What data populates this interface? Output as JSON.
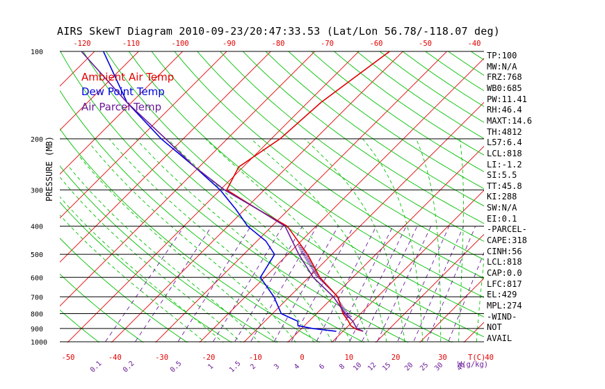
{
  "title": "AIRS SkewT Diagram 2010-09-23/20:47:33.53 (Lat/Lon 56.78/-118.07 deg)",
  "legend": [
    {
      "label": "Ambient Air Temp",
      "color": "#e00000"
    },
    {
      "label": "Dew Point Temp",
      "color": "#0000e0"
    },
    {
      "label": "Air Parcel Temp",
      "color": "#6a1b9a"
    }
  ],
  "colors": {
    "temp": "#e00000",
    "dew": "#0000e0",
    "parcel": "#6a1b9a",
    "isotherm": "#e00000",
    "dry_adiabat": "#00c000",
    "moist_adiabat": "#00c000",
    "mixing_ratio": "#6a1b9a",
    "axis": "#000000"
  },
  "indices": [
    "TP:100",
    "MW:N/A",
    "FRZ:768",
    "WB0:685",
    "PW:11.41",
    "RH:46.4",
    "MAXT:14.6",
    "TH:4812",
    "L57:6.4",
    "LCL:818",
    "LI:-1.2",
    "SI:5.5",
    "TT:45.8",
    "KI:288",
    "SW:N/A",
    "EI:0.1",
    "-PARCEL-",
    "CAPE:318",
    "CINH:56",
    "LCL:818",
    "CAP:0.0",
    "LFC:817",
    "EL:429",
    "MPL:274",
    "-WIND-",
    "NOT",
    "AVAIL"
  ],
  "chart_data": {
    "type": "line",
    "title": "AIRS SkewT Diagram 2010-09-23/20:47:33.53 (Lat/Lon 56.78/-118.07 deg)",
    "ylabel": "PRESSURE (MB)",
    "xlabel": "T(C)",
    "mixing_ratio_label": "W(g/kg)",
    "y_scale": "log",
    "ylim": [
      1000,
      100
    ],
    "pressure_ticks": [
      "100",
      "200",
      "300",
      "400",
      "500",
      "600",
      "700",
      "800",
      "900",
      "1000"
    ],
    "top_temp_ticks": [
      "-120",
      "-110",
      "-100",
      "-90",
      "-80",
      "-70",
      "-60",
      "-50",
      "-40"
    ],
    "bottom_temp_ticks": [
      "-50",
      "-40",
      "-30",
      "-20",
      "-10",
      "0",
      "10",
      "20",
      "30",
      "40"
    ],
    "mixing_ratio_ticks": [
      "0.1",
      "0.2",
      "0.5",
      "1",
      "1.5",
      "2",
      "3",
      "4",
      "6",
      "8",
      "10",
      "12",
      "15",
      "20",
      "25",
      "30",
      "40"
    ],
    "series": [
      {
        "name": "Ambient Air Temp",
        "pressure": [
          920,
          905,
          880,
          850,
          800,
          700,
          600,
          500,
          400,
          350,
          300,
          250,
          200,
          150,
          100
        ],
        "temperature": [
          14.6,
          12.5,
          10.5,
          9.0,
          6.0,
          1.0,
          -7.5,
          -15.5,
          -26.5,
          -37,
          -48.5,
          -51,
          -48,
          -47,
          -43
        ]
      },
      {
        "name": "Dew Point Temp",
        "pressure": [
          920,
          900,
          880,
          850,
          800,
          700,
          600,
          500,
          450,
          400,
          350,
          300,
          250,
          200,
          150,
          100
        ],
        "temperature": [
          8.5,
          2.5,
          -1.5,
          -2.5,
          -8.0,
          -13.5,
          -21.0,
          -23.0,
          -28.0,
          -35.5,
          -42.0,
          -50.0,
          -61.0,
          -75.0,
          -91.0,
          -108.0
        ]
      },
      {
        "name": "Air Parcel Temp",
        "pressure": [
          920,
          900,
          850,
          800,
          700,
          600,
          500,
          400,
          350,
          300,
          250,
          200,
          150,
          100
        ],
        "temperature": [
          14.6,
          12.5,
          10.0,
          6.5,
          0.0,
          -9.0,
          -17.5,
          -27.0,
          -37.0,
          -49.0,
          -61.0,
          -74.0,
          -91.0,
          -113.0
        ]
      }
    ]
  }
}
